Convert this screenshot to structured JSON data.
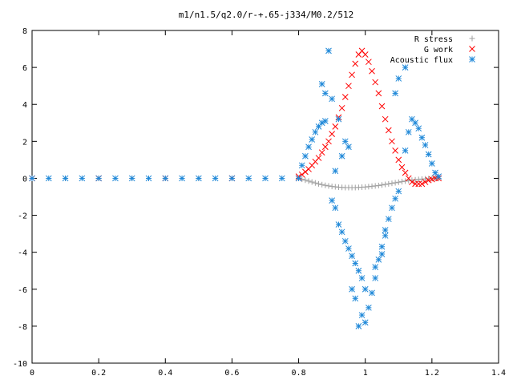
{
  "chart_data": {
    "type": "scatter",
    "title": "m1/n1.5/q2.0/r-+.65-j334/M0.2/512",
    "xlabel": "",
    "ylabel": "",
    "xlim": [
      0,
      1.4
    ],
    "ylim": [
      -10,
      8
    ],
    "xticks": [
      0,
      0.2,
      0.4,
      0.6,
      0.8,
      1,
      1.2,
      1.4
    ],
    "xtick_labels": [
      "0",
      "0.2",
      "0.4",
      "0.6",
      "0.8",
      "1",
      "1.2",
      "1.4"
    ],
    "yticks": [
      -10,
      -8,
      -6,
      -4,
      -2,
      0,
      2,
      4,
      6,
      8
    ],
    "ytick_labels": [
      "-10",
      "-8",
      "-6",
      "-4",
      "-2",
      "0",
      "2",
      "4",
      "6",
      "8"
    ],
    "grid": false,
    "legend_position": "top-right",
    "series": [
      {
        "name": "R stress",
        "marker": "plus",
        "color": "#a0a0a0",
        "points": [
          [
            0.0,
            0.0
          ],
          [
            0.1,
            0.0
          ],
          [
            0.2,
            0.0
          ],
          [
            0.3,
            0.0
          ],
          [
            0.4,
            0.0
          ],
          [
            0.5,
            0.0
          ],
          [
            0.6,
            0.0
          ],
          [
            0.7,
            0.0
          ],
          [
            0.8,
            0.0
          ],
          [
            0.81,
            -0.05
          ],
          [
            0.82,
            -0.1
          ],
          [
            0.83,
            -0.15
          ],
          [
            0.84,
            -0.2
          ],
          [
            0.85,
            -0.25
          ],
          [
            0.86,
            -0.3
          ],
          [
            0.87,
            -0.34
          ],
          [
            0.88,
            -0.38
          ],
          [
            0.89,
            -0.41
          ],
          [
            0.9,
            -0.44
          ],
          [
            0.91,
            -0.46
          ],
          [
            0.92,
            -0.48
          ],
          [
            0.93,
            -0.49
          ],
          [
            0.94,
            -0.5
          ],
          [
            0.95,
            -0.5
          ],
          [
            0.96,
            -0.5
          ],
          [
            0.97,
            -0.5
          ],
          [
            0.98,
            -0.49
          ],
          [
            0.99,
            -0.48
          ],
          [
            1.0,
            -0.47
          ],
          [
            1.01,
            -0.45
          ],
          [
            1.02,
            -0.43
          ],
          [
            1.03,
            -0.41
          ],
          [
            1.04,
            -0.39
          ],
          [
            1.05,
            -0.36
          ],
          [
            1.06,
            -0.33
          ],
          [
            1.07,
            -0.3
          ],
          [
            1.08,
            -0.27
          ],
          [
            1.09,
            -0.24
          ],
          [
            1.1,
            -0.21
          ],
          [
            1.11,
            -0.18
          ],
          [
            1.12,
            -0.15
          ],
          [
            1.13,
            -0.12
          ],
          [
            1.14,
            -0.1
          ],
          [
            1.15,
            -0.08
          ],
          [
            1.16,
            -0.06
          ],
          [
            1.17,
            -0.04
          ],
          [
            1.18,
            -0.03
          ],
          [
            1.19,
            -0.02
          ],
          [
            1.2,
            -0.01
          ],
          [
            1.21,
            0.0
          ],
          [
            1.22,
            0.0
          ]
        ]
      },
      {
        "name": "G work",
        "marker": "cross",
        "color": "#ff0000",
        "points": [
          [
            0.0,
            0.0
          ],
          [
            0.2,
            0.0
          ],
          [
            0.4,
            0.0
          ],
          [
            0.6,
            0.0
          ],
          [
            0.8,
            0.0
          ],
          [
            0.8,
            0.1
          ],
          [
            0.81,
            0.2
          ],
          [
            0.82,
            0.35
          ],
          [
            0.83,
            0.5
          ],
          [
            0.84,
            0.7
          ],
          [
            0.85,
            0.9
          ],
          [
            0.86,
            1.1
          ],
          [
            0.87,
            1.4
          ],
          [
            0.88,
            1.7
          ],
          [
            0.89,
            2.0
          ],
          [
            0.9,
            2.4
          ],
          [
            0.91,
            2.8
          ],
          [
            0.92,
            3.3
          ],
          [
            0.93,
            3.8
          ],
          [
            0.94,
            4.4
          ],
          [
            0.95,
            5.0
          ],
          [
            0.96,
            5.6
          ],
          [
            0.97,
            6.2
          ],
          [
            0.98,
            6.7
          ],
          [
            0.99,
            6.9
          ],
          [
            1.0,
            6.7
          ],
          [
            1.01,
            6.3
          ],
          [
            1.02,
            5.8
          ],
          [
            1.03,
            5.2
          ],
          [
            1.04,
            4.6
          ],
          [
            1.05,
            3.9
          ],
          [
            1.06,
            3.2
          ],
          [
            1.07,
            2.6
          ],
          [
            1.08,
            2.0
          ],
          [
            1.09,
            1.5
          ],
          [
            1.1,
            1.0
          ],
          [
            1.11,
            0.6
          ],
          [
            1.12,
            0.3
          ],
          [
            1.13,
            0.0
          ],
          [
            1.14,
            -0.2
          ],
          [
            1.15,
            -0.3
          ],
          [
            1.16,
            -0.3
          ],
          [
            1.17,
            -0.3
          ],
          [
            1.18,
            -0.2
          ],
          [
            1.19,
            -0.1
          ],
          [
            1.2,
            -0.05
          ],
          [
            1.21,
            0.0
          ],
          [
            1.22,
            0.0
          ]
        ]
      },
      {
        "name": "Acoustic flux",
        "marker": "star",
        "color": "#1f88d8",
        "points": [
          [
            0.0,
            0.0
          ],
          [
            0.05,
            0.0
          ],
          [
            0.1,
            0.0
          ],
          [
            0.15,
            0.0
          ],
          [
            0.2,
            0.0
          ],
          [
            0.25,
            0.0
          ],
          [
            0.3,
            0.0
          ],
          [
            0.35,
            0.0
          ],
          [
            0.4,
            0.0
          ],
          [
            0.45,
            0.0
          ],
          [
            0.5,
            0.0
          ],
          [
            0.55,
            0.0
          ],
          [
            0.6,
            0.0
          ],
          [
            0.65,
            0.0
          ],
          [
            0.7,
            0.0
          ],
          [
            0.75,
            0.0
          ],
          [
            0.8,
            0.0
          ],
          [
            0.81,
            0.7
          ],
          [
            0.82,
            1.2
          ],
          [
            0.83,
            1.7
          ],
          [
            0.84,
            2.1
          ],
          [
            0.85,
            2.5
          ],
          [
            0.86,
            2.8
          ],
          [
            0.87,
            3.0
          ],
          [
            0.88,
            3.1
          ],
          [
            0.87,
            5.1
          ],
          [
            0.89,
            6.9
          ],
          [
            0.9,
            4.3
          ],
          [
            0.88,
            4.6
          ],
          [
            0.92,
            3.2
          ],
          [
            0.91,
            0.4
          ],
          [
            0.93,
            1.2
          ],
          [
            0.94,
            2.0
          ],
          [
            0.95,
            1.7
          ],
          [
            0.9,
            -1.2
          ],
          [
            0.91,
            -1.6
          ],
          [
            0.92,
            -2.5
          ],
          [
            0.93,
            -2.9
          ],
          [
            0.94,
            -3.4
          ],
          [
            0.95,
            -3.8
          ],
          [
            0.96,
            -4.2
          ],
          [
            0.97,
            -4.6
          ],
          [
            0.98,
            -5.0
          ],
          [
            0.99,
            -5.4
          ],
          [
            1.0,
            -6.0
          ],
          [
            0.97,
            -6.5
          ],
          [
            0.99,
            -7.4
          ],
          [
            1.0,
            -7.8
          ],
          [
            0.98,
            -8.0
          ],
          [
            1.01,
            -7.0
          ],
          [
            1.02,
            -6.2
          ],
          [
            1.03,
            -5.4
          ],
          [
            1.04,
            -4.4
          ],
          [
            1.05,
            -3.7
          ],
          [
            1.06,
            -2.8
          ],
          [
            1.07,
            -2.2
          ],
          [
            1.08,
            -1.6
          ],
          [
            1.09,
            -1.1
          ],
          [
            1.1,
            -0.7
          ],
          [
            1.12,
            1.5
          ],
          [
            1.13,
            2.5
          ],
          [
            1.14,
            3.2
          ],
          [
            1.15,
            3.0
          ],
          [
            1.16,
            2.7
          ],
          [
            1.17,
            2.2
          ],
          [
            1.18,
            1.8
          ],
          [
            1.19,
            1.3
          ],
          [
            1.2,
            0.8
          ],
          [
            1.21,
            0.3
          ],
          [
            1.22,
            0.1
          ],
          [
            1.1,
            5.4
          ],
          [
            1.12,
            6.0
          ],
          [
            1.09,
            4.6
          ],
          [
            1.05,
            -4.1
          ],
          [
            1.06,
            -3.1
          ],
          [
            0.96,
            -6.0
          ],
          [
            1.03,
            -4.8
          ]
        ]
      }
    ]
  }
}
